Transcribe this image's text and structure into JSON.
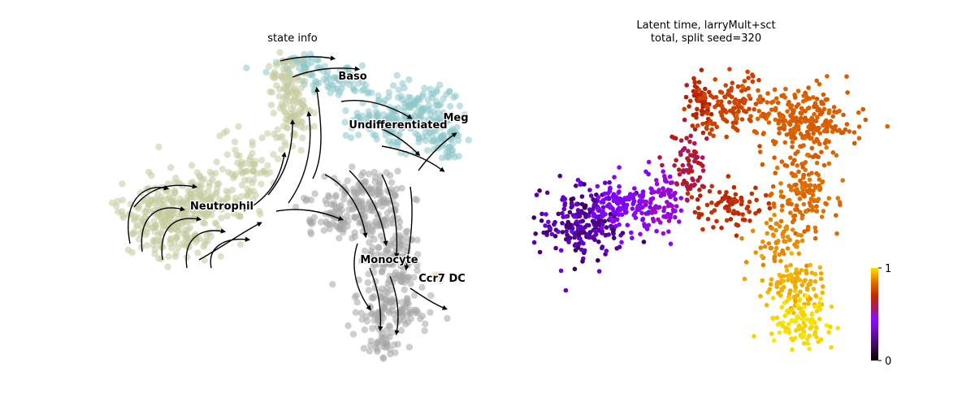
{
  "figure": {
    "panels": [
      {
        "title": "state info"
      },
      {
        "title_line1": "Latent time, larryMult+sct",
        "title_line2": "total, split seed=320"
      }
    ]
  },
  "chart_data": [
    {
      "type": "scatter",
      "subtype": "embedding with velocity streamlines",
      "title": "state info",
      "axes_visible": false,
      "legend": "on data",
      "clusters": [
        {
          "name": "Baso",
          "color": "#8ec6cb",
          "label": "Baso"
        },
        {
          "name": "Meg",
          "color": "#8ec6cb",
          "label": "Meg"
        },
        {
          "name": "Undifferentiated",
          "color": "#8ec6cb",
          "label": "Undifferentiated"
        },
        {
          "name": "Neutrophil",
          "color": "#c5ca9f",
          "label": "Neutrophil"
        },
        {
          "name": "Monocyte",
          "color": "#a6a6a6",
          "label": "Monocyte"
        },
        {
          "name": "Ccr7 DC",
          "color": "#f6c39a",
          "label": "Ccr7 DC"
        }
      ]
    },
    {
      "type": "scatter",
      "subtype": "embedding colored by continuous value",
      "title": "Latent time, larryMult+sct\ntotal, split seed=320",
      "axes_visible": false,
      "colormap": "gnuplot",
      "colorbar": {
        "min": 0,
        "max": 1,
        "tick_labels": [
          "0",
          "1"
        ]
      }
    }
  ]
}
